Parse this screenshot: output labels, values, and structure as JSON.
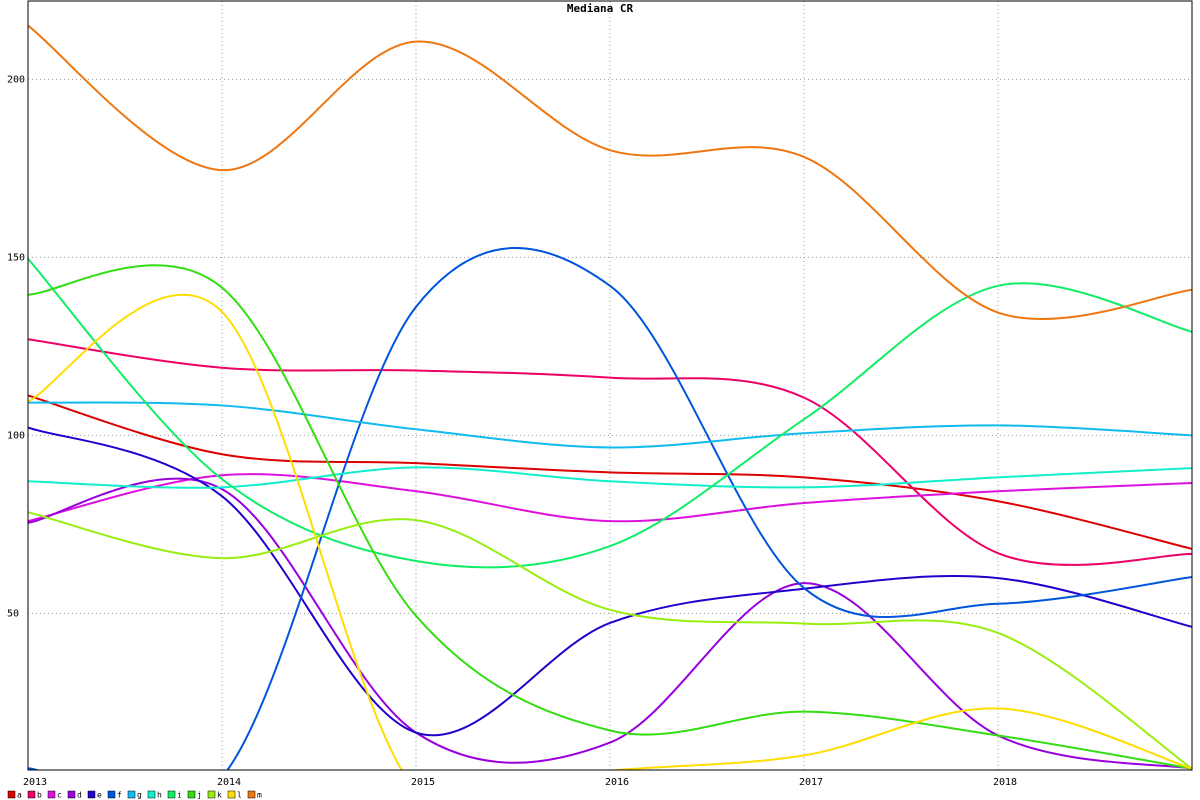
{
  "chart_data": {
    "type": "line",
    "title": "Mediana CR",
    "x": [
      2013,
      2014,
      2015,
      2016,
      2017,
      2018,
      2019
    ],
    "xlim": [
      2013,
      2019
    ],
    "xticks": [
      2013,
      2014,
      2015,
      2016,
      2017,
      2018
    ],
    "ylim": [
      6,
      222
    ],
    "yticks": [
      50,
      100,
      150,
      200
    ],
    "grid": true,
    "legend": "bottom",
    "series": [
      {
        "name": "a",
        "color": "#dd0000",
        "values": [
          111.2,
          94.7,
          92.2,
          89.6,
          88.2,
          81.5,
          68.1
        ]
      },
      {
        "name": "b",
        "color": "#ee0066",
        "values": [
          127.0,
          119.0,
          118.2,
          116.2,
          110.6,
          66.9,
          66.7
        ]
      },
      {
        "name": "c",
        "color": "#dd11dd",
        "values": [
          75.9,
          88.8,
          84.3,
          75.9,
          81.0,
          84.3,
          86.6
        ]
      },
      {
        "name": "d",
        "color": "#9900dd",
        "values": [
          75.4,
          84.9,
          16.5,
          13.7,
          58.5,
          15.7,
          6.4
        ]
      },
      {
        "name": "e",
        "color": "#2200cc",
        "values": [
          102.2,
          82.9,
          16.5,
          47.3,
          56.9,
          59.9,
          46.2
        ]
      },
      {
        "name": "f",
        "color": "#0055dd",
        "values": [
          6.5,
          4,
          136.1,
          142,
          57.1,
          52.7,
          60.2
        ]
      },
      {
        "name": "g",
        "color": "#11bbee",
        "values": [
          109.2,
          108.4,
          101.7,
          96.6,
          100.6,
          102.8,
          100.0
        ]
      },
      {
        "name": "h",
        "color": "#11eecc",
        "values": [
          87.1,
          85.4,
          91.0,
          87.1,
          85.4,
          88.2,
          90.8
        ]
      },
      {
        "name": "i",
        "color": "#11ee66",
        "values": [
          149.6,
          87.7,
          64.7,
          68.9,
          104.5,
          142.0,
          129.1
        ]
      },
      {
        "name": "j",
        "color": "#33dd11",
        "values": [
          139.5,
          141.5,
          49.3,
          17.1,
          22.4,
          15.7,
          6.4
        ]
      },
      {
        "name": "k",
        "color": "#99ee11",
        "values": [
          78.4,
          65.5,
          76.2,
          51.0,
          47.1,
          44.5,
          6.4
        ]
      },
      {
        "name": "l",
        "color": "#ffdd00",
        "values": [
          109.5,
          134.7,
          0,
          5.8,
          10.1,
          23.3,
          6.4
        ]
      },
      {
        "name": "m",
        "color": "#ee7711",
        "values": [
          215.1,
          174.5,
          210.6,
          180.1,
          178.2,
          134.5,
          140.9
        ]
      }
    ]
  }
}
